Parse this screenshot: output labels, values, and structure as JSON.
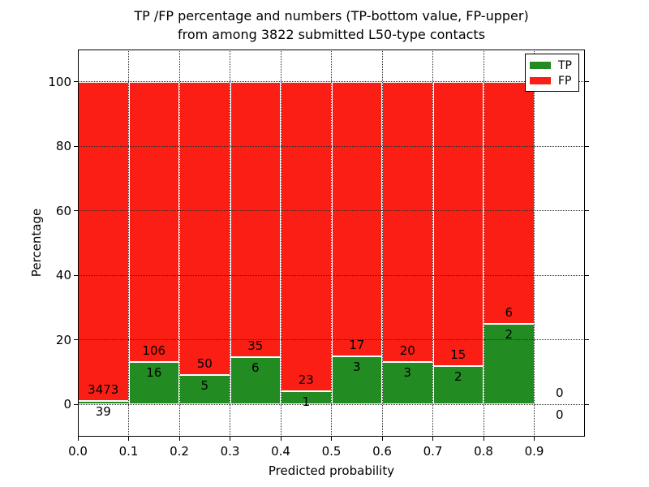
{
  "title": {
    "line1": "TP /FP percentage and numbers (TP-bottom value, FP-upper)",
    "line2": "from among 3822 submitted L50-type contacts"
  },
  "legend": [
    {
      "label": "TP",
      "color": "#228b22"
    },
    {
      "label": "FP",
      "color": "#fa1e14"
    }
  ],
  "chart_data": {
    "type": "bar",
    "variant": "stacked-percentage",
    "title": "TP /FP percentage and numbers (TP-bottom value, FP-upper) from among 3822 submitted L50-type contacts",
    "xlabel": "Predicted probability",
    "ylabel": "Percentage",
    "xlim": [
      0.0,
      1.0
    ],
    "ylim": [
      -10,
      110
    ],
    "x_ticks": [
      "0.0",
      "0.1",
      "0.2",
      "0.3",
      "0.4",
      "0.5",
      "0.6",
      "0.7",
      "0.8",
      "0.9"
    ],
    "y_ticks": [
      0,
      20,
      40,
      60,
      80,
      100
    ],
    "grid": "dotted, drawn over bars",
    "legend_position": "upper right",
    "bin_width": 0.1,
    "total_contacts": 3822,
    "series": [
      {
        "name": "TP",
        "color": "#228b22",
        "position": "bottom"
      },
      {
        "name": "FP",
        "color": "#fa1e14",
        "position": "top"
      }
    ],
    "bins": [
      {
        "range": [
          0.0,
          0.1
        ],
        "tp": 39,
        "fp": 3473
      },
      {
        "range": [
          0.1,
          0.2
        ],
        "tp": 16,
        "fp": 106
      },
      {
        "range": [
          0.2,
          0.3
        ],
        "tp": 5,
        "fp": 50
      },
      {
        "range": [
          0.3,
          0.4
        ],
        "tp": 6,
        "fp": 35
      },
      {
        "range": [
          0.4,
          0.5
        ],
        "tp": 1,
        "fp": 23
      },
      {
        "range": [
          0.5,
          0.6
        ],
        "tp": 3,
        "fp": 17
      },
      {
        "range": [
          0.6,
          0.7
        ],
        "tp": 3,
        "fp": 20
      },
      {
        "range": [
          0.7,
          0.8
        ],
        "tp": 2,
        "fp": 15
      },
      {
        "range": [
          0.8,
          0.9
        ],
        "tp": 2,
        "fp": 6
      },
      {
        "range": [
          0.9,
          1.0
        ],
        "tp": 0,
        "fp": 0
      }
    ]
  }
}
